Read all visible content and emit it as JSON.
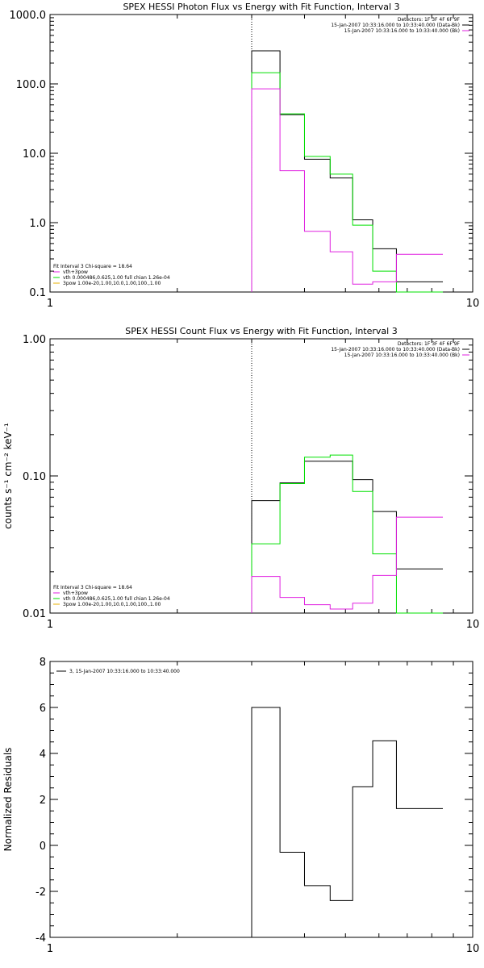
{
  "charts": [
    {
      "type": "line",
      "title": "SPEX HESSI Photon Flux vs Energy with Fit Function, Interval 3",
      "xscale": "log",
      "yscale": "log",
      "xlim": [
        1,
        10
      ],
      "ylim": [
        0.1,
        1000
      ],
      "ylabel": "",
      "xticks": [
        "1",
        "10"
      ],
      "yticks": [
        {
          "v": 0.1,
          "label": "0.1"
        },
        {
          "v": 1,
          "label": "1.0"
        },
        {
          "v": 10,
          "label": "10.0"
        },
        {
          "v": 100,
          "label": "100.0"
        },
        {
          "v": 1000,
          "label": "1000.0"
        }
      ],
      "vline_x": 3.0,
      "info": [
        {
          "text": "Detectors: 1F 3F 4F 6F 9F",
          "color": ""
        },
        {
          "text": "15-Jan-2007 10:33:16.000 to 10:33:40.000 (Data-Bk)",
          "color": "#000000"
        },
        {
          "text": "15-Jan-2007 10:33:16.000 to 10:33:40.000 (Bk)",
          "color": "#e020e0"
        }
      ],
      "fitinfo": [
        {
          "text": "Fit Interval 3   Chi-square = 18.64",
          "color": ""
        },
        {
          "text": "vth+3pow",
          "color": "#e020e0"
        },
        {
          "text": "vth 0.000486,0.625,1.00  full chian 1.26e-04",
          "color": "#00e000"
        },
        {
          "text": "3pow 1.00e-20,1.00,10.0,1.00,100.,1.00",
          "color": "#e8b000"
        }
      ],
      "series": [
        {
          "color": "#000000",
          "edges": [
            3.0,
            3.5,
            4.0,
            4.6,
            5.2,
            5.8,
            6.6,
            7.5,
            8.5
          ],
          "values": [
            300,
            36,
            8.2,
            4.4,
            1.1,
            0.42,
            0.14,
            0.14
          ]
        },
        {
          "color": "#00e000",
          "edges": [
            3.0,
            3.5,
            4.0,
            4.6,
            5.2,
            5.8,
            6.6,
            7.5,
            8.5
          ],
          "values": [
            145,
            37,
            9.0,
            5.0,
            0.92,
            0.2,
            0.1,
            0.08
          ]
        },
        {
          "color": "#e020e0",
          "edges": [
            3.0,
            3.5,
            4.0,
            4.6,
            5.2,
            5.8,
            6.6,
            7.5,
            8.5
          ],
          "values": [
            85,
            5.6,
            0.75,
            0.38,
            0.13,
            0.14,
            0.35,
            0.35
          ]
        }
      ]
    },
    {
      "type": "line",
      "title": "SPEX HESSI Count Flux vs Energy with Fit Function, Interval 3",
      "xscale": "log",
      "yscale": "log",
      "xlim": [
        1,
        10
      ],
      "ylim": [
        0.01,
        1.0
      ],
      "ylabel": "counts s⁻¹ cm⁻² keV⁻¹",
      "xticks": [
        "1",
        "10"
      ],
      "yticks": [
        {
          "v": 0.01,
          "label": "0.01"
        },
        {
          "v": 0.1,
          "label": "0.10"
        },
        {
          "v": 1.0,
          "label": "1.00"
        }
      ],
      "vline_x": 3.0,
      "info": [
        {
          "text": "Detectors: 1F 3F 4F 6F 9F",
          "color": ""
        },
        {
          "text": "15-Jan-2007 10:33:16.000 to 10:33:40.000 (Data-Bk)",
          "color": "#000000"
        },
        {
          "text": "15-Jan-2007 10:33:16.000 to 10:33:40.000 (Bk)",
          "color": "#e020e0"
        }
      ],
      "fitinfo": [
        {
          "text": "Fit Interval 3   Chi-square = 18.64",
          "color": ""
        },
        {
          "text": "vth+3pow",
          "color": "#e020e0"
        },
        {
          "text": "vth 0.000486,0.625,1.00  full chian 1.26e-04",
          "color": "#00e000"
        },
        {
          "text": "3pow 1.00e-20,1.00,10.0,1.00,100.,1.00",
          "color": "#e8b000"
        }
      ],
      "series": [
        {
          "color": "#000000",
          "edges": [
            3.0,
            3.5,
            4.0,
            4.6,
            5.2,
            5.8,
            6.6,
            7.5,
            8.5
          ],
          "values": [
            0.066,
            0.089,
            0.128,
            0.128,
            0.094,
            0.055,
            0.021,
            0.021
          ]
        },
        {
          "color": "#00e000",
          "edges": [
            3.0,
            3.5,
            4.0,
            4.6,
            5.2,
            5.8,
            6.6,
            7.5,
            8.5
          ],
          "values": [
            0.032,
            0.088,
            0.137,
            0.142,
            0.077,
            0.027,
            0.01,
            0.01
          ]
        },
        {
          "color": "#e020e0",
          "edges": [
            3.0,
            3.5,
            4.0,
            4.6,
            5.2,
            5.8,
            6.6,
            7.5,
            8.5
          ],
          "values": [
            0.0185,
            0.013,
            0.0115,
            0.0107,
            0.0118,
            0.0188,
            0.05,
            0.05
          ]
        }
      ]
    },
    {
      "type": "line",
      "title": "",
      "xscale": "log",
      "yscale": "linear",
      "xlim": [
        1,
        10
      ],
      "ylim": [
        -4,
        8
      ],
      "ylabel": "Normalized Residuals",
      "xticks": [
        "1",
        "10"
      ],
      "yticks": [
        {
          "v": -4,
          "label": "-4"
        },
        {
          "v": -2,
          "label": "-2"
        },
        {
          "v": 0,
          "label": "0"
        },
        {
          "v": 2,
          "label": "2"
        },
        {
          "v": 4,
          "label": "4"
        },
        {
          "v": 6,
          "label": "6"
        },
        {
          "v": 8,
          "label": "8"
        }
      ],
      "legend": {
        "text": "3, 15-Jan-2007 10:33:16.000 to 10:33:40.000",
        "color": "#000000"
      },
      "series": [
        {
          "color": "#000000",
          "edges": [
            3.0,
            3.5,
            4.0,
            4.6,
            5.2,
            5.8,
            6.6,
            7.5,
            8.5
          ],
          "values": [
            6.0,
            -0.3,
            -1.75,
            -2.4,
            2.55,
            4.55,
            1.6,
            1.6
          ]
        }
      ]
    }
  ]
}
